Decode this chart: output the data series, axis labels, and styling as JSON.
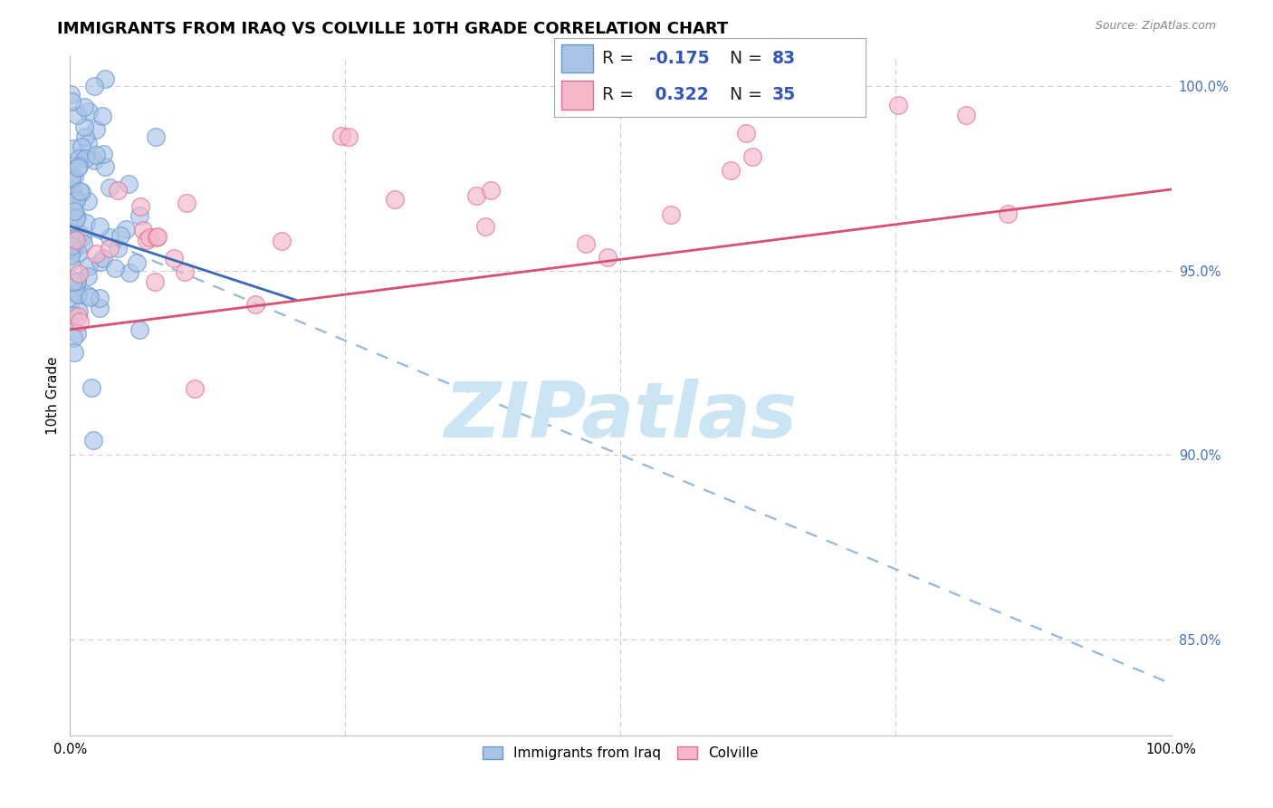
{
  "title": "IMMIGRANTS FROM IRAQ VS COLVILLE 10TH GRADE CORRELATION CHART",
  "source": "Source: ZipAtlas.com",
  "ylabel": "10th Grade",
  "legend_label_1_name": "Immigrants from Iraq",
  "legend_label_2_name": "Colville",
  "blue_scatter_color": "#aac4e8",
  "blue_scatter_edge": "#6699cc",
  "pink_scatter_color": "#f5b8cb",
  "pink_scatter_edge": "#e07090",
  "blue_line_color": "#3a6ab4",
  "pink_line_color": "#d95070",
  "blue_dash_color": "#90b8e0",
  "right_tick_color": "#4472c4",
  "watermark_color": "#cce5f5",
  "grid_color": "#cccccc",
  "xlim": [
    0.0,
    1.0
  ],
  "ylim": [
    0.824,
    1.008
  ],
  "yticks": [
    1.0,
    0.95,
    0.9,
    0.85
  ],
  "ytick_labels": [
    "100.0%",
    "95.0%",
    "90.0%",
    "85.0%"
  ],
  "xtick_positions": [
    0.0,
    0.25,
    0.5,
    0.75,
    1.0
  ],
  "xtick_labels": [
    "0.0%",
    "",
    "",
    "",
    "100.0%"
  ],
  "title_fontsize": 13,
  "source_fontsize": 9,
  "tick_fontsize": 10.5,
  "ylabel_fontsize": 11
}
